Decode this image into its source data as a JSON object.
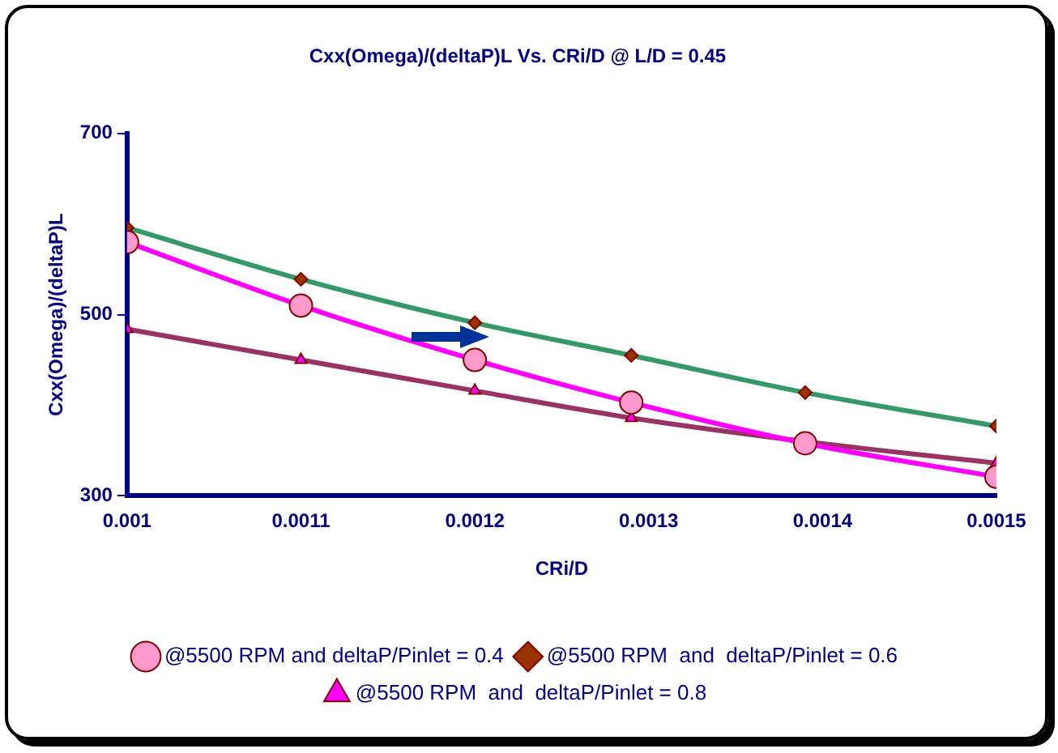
{
  "chart_data": {
    "type": "line",
    "title": "Cxx(Omega)/(deltaP)L Vs. CRi/D @ L/D = 0.45",
    "xlabel": "CRi/D",
    "ylabel": "Cxx(Omega)/(deltaP)L",
    "x": [
      0.001,
      0.0011,
      0.0012,
      0.00129,
      0.00139,
      0.0015
    ],
    "xlim": [
      0.001,
      0.0015
    ],
    "xticks": [
      0.001,
      0.0011,
      0.0012,
      0.0013,
      0.0014,
      0.0015
    ],
    "ylim": [
      300,
      700
    ],
    "yticks": [
      300,
      500,
      700
    ],
    "grid": false,
    "legend": "bottom",
    "line_style": "solid",
    "series": [
      {
        "name": "@5500 RPM and deltaP/Pinlet = 0.4",
        "color": "#ff00ff",
        "marker": "circle",
        "values": [
          580,
          510,
          450,
          403,
          358,
          321
        ]
      },
      {
        "name": "@5500 RPM  and  deltaP/Pinlet = 0.6",
        "color": "#339966",
        "marker": "diamond",
        "values": [
          596,
          539,
          491,
          455,
          414,
          377
        ]
      },
      {
        "name": "@5500 RPM  and  deltaP/Pinlet = 0.8",
        "color": "#993366",
        "marker": "triangle",
        "values": [
          484,
          450,
          416,
          386,
          360,
          336
        ]
      }
    ]
  }
}
